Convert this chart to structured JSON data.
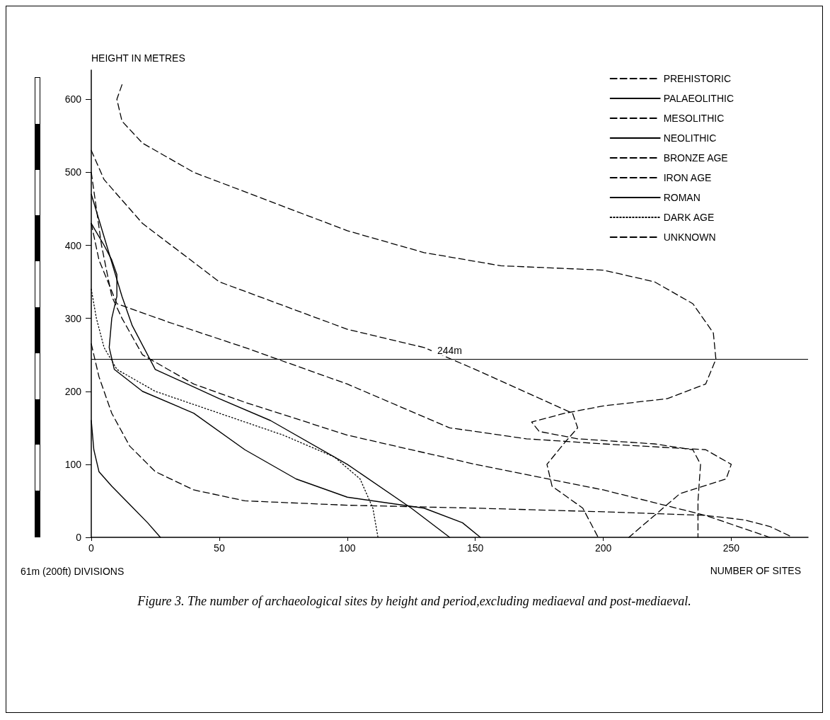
{
  "chart_data": {
    "type": "line",
    "title": "Figure 3. The number of archaeological sites by height and period,excluding mediaeval and post-mediaeval.",
    "xlabel": "NUMBER OF SITES",
    "ylabel": "HEIGHT IN METRES",
    "annotations": [
      "61m (200ft) DIVISIONS"
    ],
    "xlim": [
      0,
      280
    ],
    "ylim": [
      0,
      640
    ],
    "xticks": [
      0,
      50,
      100,
      150,
      200,
      250
    ],
    "yticks": [
      0,
      100,
      200,
      300,
      400,
      500,
      600
    ],
    "grid": false,
    "legend": "top right",
    "marker": "none",
    "ref_lines": [
      {
        "axis": "y",
        "value": 244,
        "label": "244m",
        "color": "#000000",
        "line_style": "solid"
      }
    ],
    "series": [
      {
        "name": "PREHISTORIC",
        "color": "#000000",
        "line_style": "dashed",
        "x": [
          0,
          4,
          8,
          12,
          20,
          40,
          60,
          100,
          150,
          200,
          240,
          265
        ],
        "values": [
          500,
          400,
          330,
          300,
          250,
          210,
          185,
          140,
          100,
          65,
          30,
          0
        ]
      },
      {
        "name": "PALAEOLITHIC",
        "color": "#000000",
        "line_style": "solid",
        "x": [
          0,
          1,
          3,
          8,
          15,
          22,
          27
        ],
        "values": [
          160,
          120,
          90,
          70,
          45,
          20,
          0
        ]
      },
      {
        "name": "MESOLITHIC",
        "color": "#000000",
        "line_style": "dashed",
        "x": [
          0,
          3,
          8,
          15,
          25,
          40,
          60,
          100,
          150,
          200,
          240,
          255,
          265,
          274
        ],
        "values": [
          265,
          220,
          170,
          125,
          90,
          65,
          50,
          44,
          40,
          35,
          30,
          24,
          15,
          0
        ]
      },
      {
        "name": "NEOLITHIC",
        "color": "#000000",
        "line_style": "solid",
        "x": [
          0,
          6,
          12,
          16,
          25,
          50,
          70,
          100,
          125,
          140
        ],
        "values": [
          470,
          400,
          330,
          290,
          230,
          190,
          160,
          100,
          40,
          0
        ]
      },
      {
        "name": "BRONZE AGE",
        "color": "#000000",
        "line_style": "dashed",
        "x": [
          12,
          10,
          12,
          20,
          40,
          70,
          100,
          130,
          160,
          200,
          220,
          235,
          243,
          244,
          240,
          225,
          200,
          185,
          172,
          175,
          190,
          220,
          235,
          238,
          237,
          237
        ],
        "values": [
          620,
          600,
          570,
          540,
          500,
          460,
          420,
          390,
          372,
          366,
          350,
          320,
          280,
          244,
          210,
          190,
          180,
          170,
          158,
          145,
          135,
          128,
          120,
          100,
          50,
          0
        ]
      },
      {
        "name": "IRON AGE",
        "color": "#000000",
        "line_style": "dashed",
        "x": [
          0,
          3,
          10,
          30,
          60,
          100,
          140,
          170,
          200,
          240,
          250,
          248,
          230,
          210
        ],
        "values": [
          430,
          380,
          320,
          295,
          260,
          210,
          150,
          135,
          128,
          120,
          100,
          80,
          60,
          0
        ]
      },
      {
        "name": "ROMAN",
        "color": "#000000",
        "line_style": "solid",
        "x": [
          0,
          5,
          8,
          10,
          10,
          8,
          7,
          9,
          20,
          40,
          60,
          80,
          100,
          130,
          145,
          152
        ],
        "values": [
          430,
          400,
          380,
          360,
          330,
          300,
          260,
          230,
          200,
          170,
          120,
          80,
          55,
          40,
          20,
          0
        ]
      },
      {
        "name": "DARK AGE",
        "color": "#000000",
        "line_style": "dotted",
        "x": [
          0,
          2,
          5,
          10,
          25,
          50,
          75,
          95,
          105,
          110,
          112
        ],
        "values": [
          340,
          300,
          260,
          230,
          200,
          170,
          140,
          110,
          80,
          40,
          0
        ]
      },
      {
        "name": "UNKNOWN",
        "color": "#000000",
        "line_style": "dashed",
        "x": [
          0,
          5,
          20,
          50,
          100,
          130,
          150,
          188,
          190,
          185,
          178,
          180,
          192,
          198
        ],
        "values": [
          530,
          490,
          430,
          350,
          285,
          260,
          230,
          170,
          150,
          130,
          100,
          70,
          40,
          0
        ]
      }
    ]
  }
}
